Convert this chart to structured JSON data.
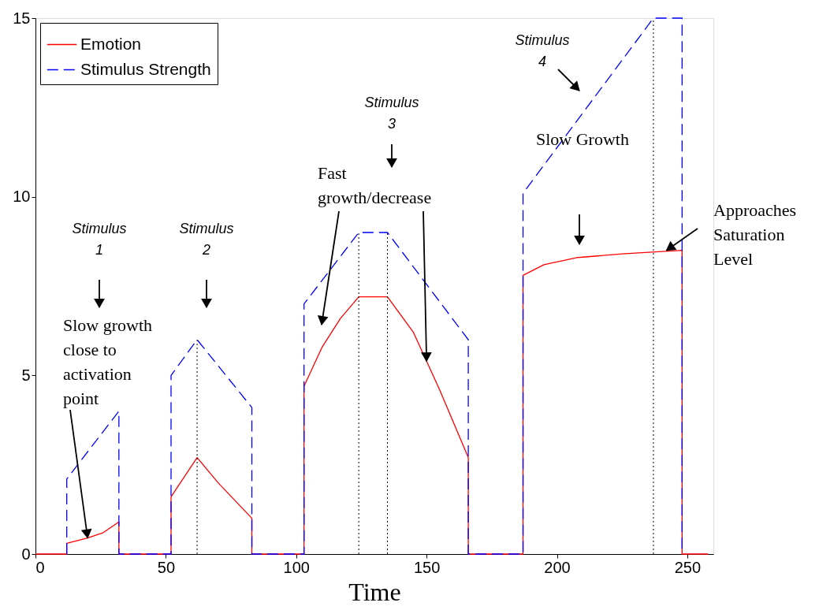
{
  "chart_data": {
    "type": "line",
    "xlabel": "Time",
    "xlim": [
      0,
      260
    ],
    "xticks": [
      0,
      50,
      100,
      150,
      200,
      250
    ],
    "ylim": [
      0,
      15
    ],
    "yticks": [
      0,
      5,
      10,
      15
    ],
    "grid": false,
    "legend": "top left",
    "series": [
      {
        "name": "Emotion",
        "color": "#ff0000",
        "line_style": "solid",
        "x": [
          0,
          12,
          12,
          20,
          26,
          32,
          32,
          52,
          52,
          62,
          70,
          83,
          83,
          103,
          103,
          110,
          117,
          124,
          135,
          145,
          155,
          166,
          166,
          187,
          187,
          195,
          208,
          225,
          248,
          248,
          258
        ],
        "values": [
          0,
          0,
          0.3,
          0.45,
          0.6,
          0.9,
          0,
          0,
          1.6,
          2.7,
          2.0,
          1.0,
          0,
          0,
          4.7,
          5.8,
          6.6,
          7.2,
          7.2,
          6.2,
          4.6,
          2.7,
          0,
          0,
          7.8,
          8.1,
          8.3,
          8.4,
          8.5,
          0,
          0
        ]
      },
      {
        "name": "Stimulus Strength",
        "color": "#0000ff",
        "line_style": "dashed",
        "x": [
          12,
          12,
          32,
          32,
          52,
          52,
          62,
          83,
          83,
          103,
          103,
          124,
          135,
          166,
          166,
          187,
          187,
          237,
          248,
          248
        ],
        "values": [
          0,
          2.1,
          4.0,
          0,
          0,
          5.0,
          6.0,
          4.1,
          0,
          0,
          7.0,
          9.0,
          9.0,
          6.0,
          0,
          0,
          10.1,
          15,
          15,
          0
        ]
      }
    ],
    "ref_lines": [
      {
        "axis": "x",
        "value": 62,
        "label": null,
        "color": "#000000",
        "line_style": "dotted"
      },
      {
        "axis": "x",
        "value": 124,
        "label": null,
        "color": "#000000",
        "line_style": "dotted"
      },
      {
        "axis": "x",
        "value": 135,
        "label": null,
        "color": "#000000",
        "line_style": "dotted"
      },
      {
        "axis": "x",
        "value": 237,
        "label": null,
        "color": "#000000",
        "line_style": "dotted"
      }
    ],
    "annotations": [
      "Stimulus\n1",
      "Stimulus\n2",
      "Stimulus\n3",
      "Stimulus\n4",
      {
        "text": "Slow growth\nclose to\nactivation\npoint",
        "x": 20,
        "y": 0.45
      },
      {
        "text": "Fast\ngrowth/decrease",
        "x": 150,
        "y": 5.4
      },
      "Slow Growth",
      {
        "text": "Approaches\nSaturation\nLevel",
        "x": 242,
        "y": 8.5
      }
    ]
  }
}
